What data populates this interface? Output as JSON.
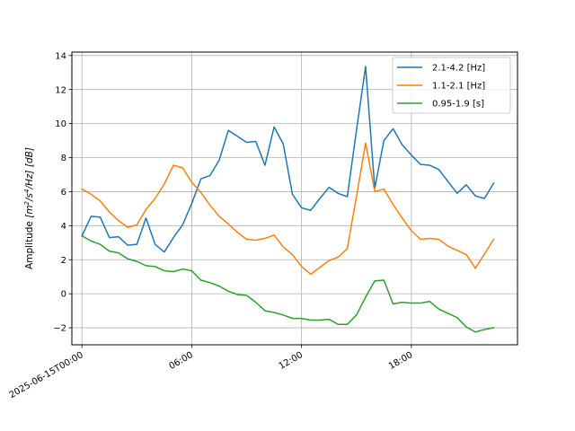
{
  "chart_data": {
    "type": "line",
    "xlabel": "",
    "ylabel": "Amplitude [m²/s⁴/Hz] [dB]",
    "ylabel_parts": {
      "prefix": "Amplitude ",
      "units_open": "[m",
      "sup1": "2",
      "mid": "/s",
      "sup2": "4",
      "tail": "/Hz] [dB]"
    },
    "x_unit": "hours since 2025-06-15T00:00",
    "xlim": [
      -0.55,
      23.8
    ],
    "ylim": [
      -3.0,
      14.2
    ],
    "grid": true,
    "legend_position": "top-right",
    "x_ticks": [
      {
        "value": 0,
        "label": "2025-06-15T00:00"
      },
      {
        "value": 6,
        "label": "06:00"
      },
      {
        "value": 12,
        "label": "12:00"
      },
      {
        "value": 18,
        "label": "18:00"
      }
    ],
    "y_ticks": [
      {
        "value": -2,
        "label": "−2"
      },
      {
        "value": 0,
        "label": "0"
      },
      {
        "value": 2,
        "label": "2"
      },
      {
        "value": 4,
        "label": "4"
      },
      {
        "value": 6,
        "label": "6"
      },
      {
        "value": 8,
        "label": "8"
      },
      {
        "value": 10,
        "label": "10"
      },
      {
        "value": 12,
        "label": "12"
      },
      {
        "value": 14,
        "label": "14"
      }
    ],
    "x": [
      0,
      0.5,
      1,
      1.5,
      2,
      2.5,
      3,
      3.5,
      4,
      4.5,
      5,
      5.5,
      6,
      6.5,
      7,
      7.5,
      8,
      8.5,
      9,
      9.5,
      10,
      10.5,
      11,
      11.5,
      12,
      12.5,
      13,
      13.5,
      14,
      14.5,
      15,
      15.5,
      16,
      16.5,
      17,
      17.5,
      18,
      18.5,
      19,
      19.5,
      20,
      20.5,
      21,
      21.5,
      22,
      22.5
    ],
    "series": [
      {
        "name": "2.1-4.2 [Hz]",
        "color": "#1f77b4",
        "values": [
          3.4,
          4.55,
          4.5,
          3.3,
          3.35,
          2.85,
          2.9,
          4.45,
          2.9,
          2.45,
          3.3,
          4.05,
          5.3,
          6.75,
          6.95,
          7.85,
          9.6,
          9.25,
          8.9,
          8.95,
          7.55,
          9.8,
          8.8,
          5.85,
          5.05,
          4.9,
          5.6,
          6.25,
          5.9,
          5.7,
          9.6,
          13.35,
          6.2,
          9.0,
          9.7,
          8.75,
          8.15,
          7.6,
          7.55,
          7.3,
          6.6,
          5.9,
          6.4,
          5.75,
          5.6,
          6.5
        ]
      },
      {
        "name": "1.1-2.1 [Hz]",
        "color": "#ff7f0e",
        "values": [
          6.15,
          5.85,
          5.45,
          4.8,
          4.3,
          3.9,
          4.05,
          4.95,
          5.6,
          6.45,
          7.55,
          7.4,
          6.55,
          5.95,
          5.2,
          4.55,
          4.1,
          3.6,
          3.2,
          3.15,
          3.25,
          3.45,
          2.75,
          2.3,
          1.6,
          1.15,
          1.55,
          1.95,
          2.15,
          2.65,
          5.7,
          8.85,
          6.0,
          6.15,
          5.25,
          4.45,
          3.7,
          3.2,
          3.25,
          3.2,
          2.8,
          2.55,
          2.3,
          1.5,
          2.35,
          3.2
        ]
      },
      {
        "name": "0.95-1.9 [s]",
        "color": "#2ca02c",
        "values": [
          3.4,
          3.1,
          2.9,
          2.5,
          2.4,
          2.05,
          1.9,
          1.65,
          1.6,
          1.35,
          1.3,
          1.45,
          1.35,
          0.8,
          0.65,
          0.45,
          0.15,
          -0.05,
          -0.1,
          -0.5,
          -1.0,
          -1.1,
          -1.25,
          -1.45,
          -1.45,
          -1.55,
          -1.55,
          -1.5,
          -1.8,
          -1.8,
          -1.25,
          -0.2,
          0.75,
          0.8,
          -0.6,
          -0.5,
          -0.55,
          -0.55,
          -0.45,
          -0.9,
          -1.15,
          -1.4,
          -1.95,
          -2.25,
          -2.1,
          -2.0
        ]
      }
    ]
  }
}
